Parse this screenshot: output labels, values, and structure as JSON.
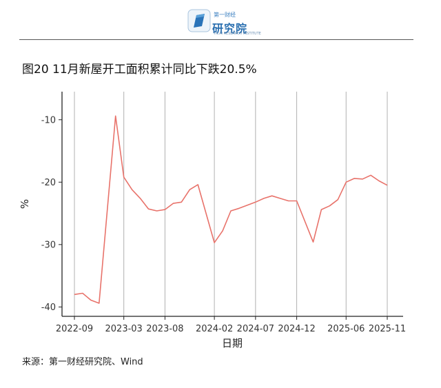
{
  "header": {
    "logo_top": "第一财经",
    "logo_main": "研究院",
    "logo_sub": "YICAI RESEARCH INSTITUTE"
  },
  "title": "图20 11月新屋开工面积累计同比下跌20.5%",
  "source": "来源：第一财经研究院、Wind",
  "colors": {
    "line": "#e8726a",
    "grid": "#b0b0b0"
  },
  "chart_data": {
    "type": "line",
    "xlabel": "日期",
    "ylabel": "%",
    "ylim": [
      -41.5,
      -5.5
    ],
    "yticks": [
      -10,
      -20,
      -30,
      -40
    ],
    "xticks": [
      "2022-09",
      "2023-03",
      "2023-08",
      "2024-02",
      "2024-07",
      "2024-12",
      "2025-06",
      "2025-11"
    ],
    "x": [
      "2022-09",
      "2022-10",
      "2022-11",
      "2022-12",
      "2023-02",
      "2023-03",
      "2023-04",
      "2023-05",
      "2023-06",
      "2023-07",
      "2023-08",
      "2023-09",
      "2023-10",
      "2023-11",
      "2023-12",
      "2024-02",
      "2024-03",
      "2024-04",
      "2024-05",
      "2024-06",
      "2024-07",
      "2024-08",
      "2024-09",
      "2024-10",
      "2024-11",
      "2024-12",
      "2025-02",
      "2025-03",
      "2025-04",
      "2025-05",
      "2025-06",
      "2025-07",
      "2025-08",
      "2025-09",
      "2025-10",
      "2025-11"
    ],
    "series": [
      {
        "values": [
          -38.0,
          -37.8,
          -38.9,
          -39.4,
          -9.4,
          -19.2,
          -21.2,
          -22.6,
          -24.3,
          -24.6,
          -24.4,
          -23.4,
          -23.2,
          -21.2,
          -20.4,
          -29.7,
          -27.8,
          -24.6,
          -24.2,
          -23.7,
          -23.2,
          -22.6,
          -22.2,
          -22.6,
          -23.0,
          -23.0,
          -29.6,
          -24.4,
          -23.8,
          -22.8,
          -20.0,
          -19.4,
          -19.5,
          -18.9,
          -19.8,
          -20.5
        ]
      }
    ]
  }
}
